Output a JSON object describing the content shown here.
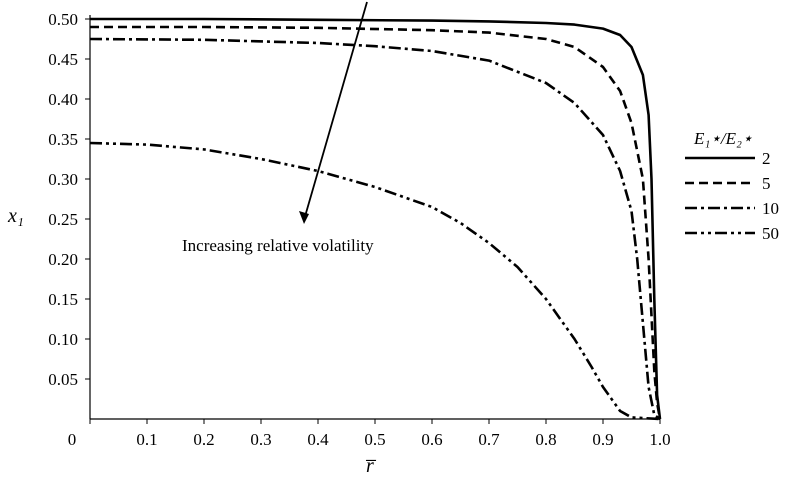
{
  "chart_data": {
    "type": "line",
    "title": "",
    "xlabel": "r̅",
    "ylabel": "x₁",
    "xlim": [
      0,
      1.0
    ],
    "ylim": [
      0,
      0.5
    ],
    "x_ticks": [
      "0",
      "0.1",
      "0.2",
      "0.3",
      "0.4",
      "0.5",
      "0.6",
      "0.7",
      "0.8",
      "0.9",
      "1.0"
    ],
    "y_ticks": [
      "0.05",
      "0.10",
      "0.15",
      "0.20",
      "0.25",
      "0.30",
      "0.35",
      "0.40",
      "0.45",
      "0.50"
    ],
    "grid": false,
    "legend": {
      "title": "E₁⋆/E₂⋆",
      "placement": "right"
    },
    "annotation": "Increasing relative volatility",
    "series": [
      {
        "name": "2",
        "dash": "solid",
        "points": [
          [
            0,
            0.5
          ],
          [
            0.2,
            0.5
          ],
          [
            0.4,
            0.499
          ],
          [
            0.6,
            0.498
          ],
          [
            0.7,
            0.497
          ],
          [
            0.8,
            0.495
          ],
          [
            0.85,
            0.493
          ],
          [
            0.9,
            0.488
          ],
          [
            0.93,
            0.48
          ],
          [
            0.95,
            0.465
          ],
          [
            0.97,
            0.43
          ],
          [
            0.98,
            0.38
          ],
          [
            0.985,
            0.3
          ],
          [
            0.99,
            0.15
          ],
          [
            0.995,
            0.03
          ],
          [
            1.0,
            0
          ]
        ]
      },
      {
        "name": "5",
        "dash": "dash",
        "points": [
          [
            0,
            0.49
          ],
          [
            0.2,
            0.49
          ],
          [
            0.4,
            0.489
          ],
          [
            0.6,
            0.486
          ],
          [
            0.7,
            0.483
          ],
          [
            0.8,
            0.475
          ],
          [
            0.85,
            0.465
          ],
          [
            0.9,
            0.44
          ],
          [
            0.93,
            0.41
          ],
          [
            0.95,
            0.37
          ],
          [
            0.97,
            0.3
          ],
          [
            0.98,
            0.2
          ],
          [
            0.99,
            0.06
          ],
          [
            0.995,
            0.02
          ],
          [
            1.0,
            0
          ]
        ]
      },
      {
        "name": "10",
        "dash": "dashdot",
        "points": [
          [
            0,
            0.475
          ],
          [
            0.2,
            0.474
          ],
          [
            0.4,
            0.47
          ],
          [
            0.5,
            0.466
          ],
          [
            0.6,
            0.46
          ],
          [
            0.7,
            0.448
          ],
          [
            0.8,
            0.42
          ],
          [
            0.85,
            0.395
          ],
          [
            0.9,
            0.355
          ],
          [
            0.93,
            0.31
          ],
          [
            0.95,
            0.26
          ],
          [
            0.96,
            0.2
          ],
          [
            0.97,
            0.12
          ],
          [
            0.98,
            0.04
          ],
          [
            0.99,
            0.005
          ],
          [
            1.0,
            0
          ]
        ]
      },
      {
        "name": "50",
        "dash": "dashdotdot",
        "points": [
          [
            0,
            0.345
          ],
          [
            0.1,
            0.343
          ],
          [
            0.2,
            0.337
          ],
          [
            0.3,
            0.325
          ],
          [
            0.4,
            0.31
          ],
          [
            0.5,
            0.29
          ],
          [
            0.6,
            0.265
          ],
          [
            0.65,
            0.245
          ],
          [
            0.7,
            0.22
          ],
          [
            0.75,
            0.19
          ],
          [
            0.8,
            0.15
          ],
          [
            0.85,
            0.1
          ],
          [
            0.88,
            0.065
          ],
          [
            0.9,
            0.04
          ],
          [
            0.93,
            0.01
          ],
          [
            0.95,
            0.002
          ],
          [
            1.0,
            0
          ]
        ]
      }
    ],
    "colors": {
      "line": "#000000",
      "axis": "#000000",
      "background": "#ffffff"
    }
  }
}
